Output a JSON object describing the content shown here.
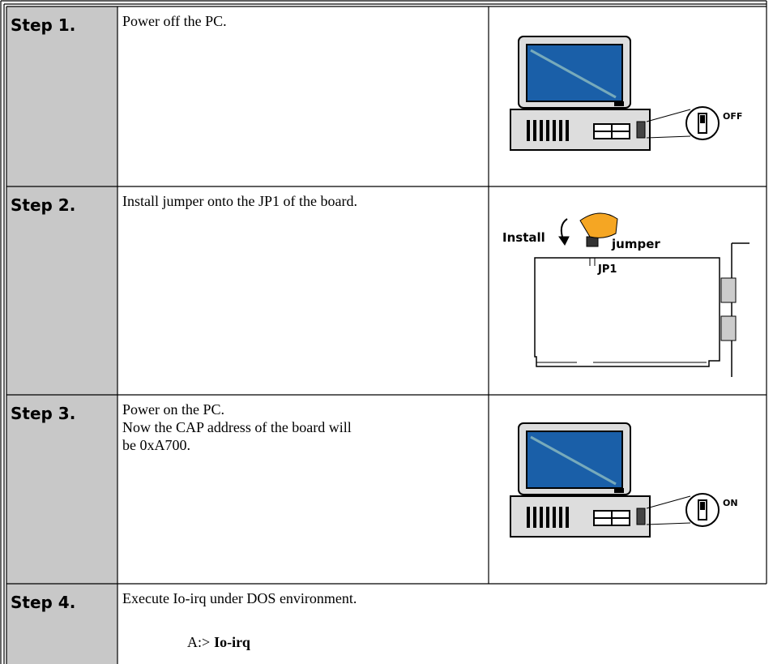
{
  "steps": [
    {
      "label": "Step 1.",
      "lines": [
        "Power off the PC."
      ],
      "figure": {
        "switch_label": "OFF"
      }
    },
    {
      "label": "Step 2.",
      "lines": [
        "Install jumper onto the JP1 of the board."
      ],
      "figure": {
        "install": "Install",
        "jumper": "jumper",
        "jp1": "JP1"
      }
    },
    {
      "label": "Step 3.",
      "lines": [
        "Power on the PC.",
        "Now the CAP address of the board will",
        "be 0xA700."
      ],
      "figure": {
        "switch_label": "ON"
      }
    },
    {
      "label": "Step 4.",
      "lines": [
        "Execute Io-irq under DOS environment."
      ],
      "prompt": "A:>",
      "command": "Io-irq"
    }
  ]
}
